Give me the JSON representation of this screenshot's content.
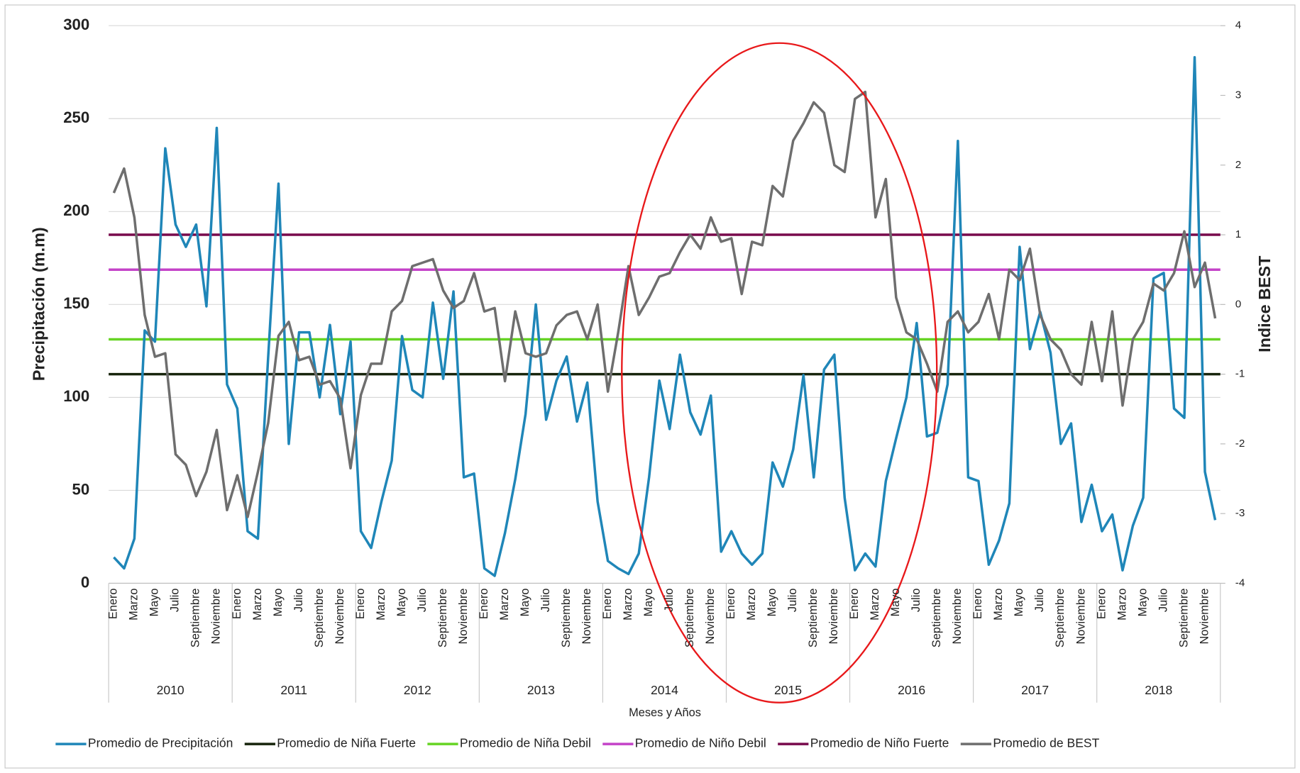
{
  "chart_data": {
    "type": "line",
    "y_title": "Precipitación (m.m)",
    "y2_title": "Indice BEST",
    "x_title": "Meses y Años",
    "categories": [
      "Enero",
      null,
      "Marzo",
      null,
      "Mayo",
      null,
      "Julio",
      null,
      "Septiembre",
      null,
      "Noviembre",
      null,
      "Enero",
      null,
      "Marzo",
      null,
      "Mayo",
      null,
      "Julio",
      null,
      "Septiembre",
      null,
      "Noviembre",
      null,
      "Enero",
      null,
      "Marzo",
      null,
      "Mayo",
      null,
      "Julio",
      null,
      "Septiembre",
      null,
      "Noviembre",
      null,
      "Enero",
      null,
      "Marzo",
      null,
      "Mayo",
      null,
      "Julio",
      null,
      "Septiembre",
      null,
      "Noviembre",
      null,
      "Enero",
      null,
      "Marzo",
      null,
      "Mayo",
      null,
      "Julio",
      null,
      "Septiembre",
      null,
      "Noviembre",
      null,
      "Enero",
      null,
      "Marzo",
      null,
      "Mayo",
      null,
      "Julio",
      null,
      "Septiembre",
      null,
      "Noviembre",
      null,
      "Enero",
      null,
      "Marzo",
      null,
      "Mayo",
      null,
      "Julio",
      null,
      "Septiembre",
      null,
      "Noviembre",
      null,
      "Enero",
      null,
      "Marzo",
      null,
      "Mayo",
      null,
      "Julio",
      null,
      "Septiembre",
      null,
      "Noviembre",
      null,
      "Enero",
      null,
      "Marzo",
      null,
      "Mayo",
      null,
      "Julio",
      null,
      "Septiembre",
      null,
      "Noviembre",
      null
    ],
    "groups": [
      "2010",
      "2011",
      "2012",
      "2013",
      "2014",
      "2015",
      "2016",
      "2017",
      "2018"
    ],
    "ylim": [
      0,
      300
    ],
    "yticks": [
      0,
      50,
      100,
      150,
      200,
      250,
      300
    ],
    "y2lim": [
      -4,
      4
    ],
    "y2ticks": [
      -4,
      -3,
      -2,
      -1,
      0,
      1,
      2,
      3,
      4
    ],
    "grid": true,
    "legend": "bottom",
    "series": [
      {
        "name": "Promedio de Precipitación",
        "color": "#1f86b8",
        "axis": "y",
        "values": [
          14,
          8,
          24,
          136,
          130,
          234,
          193,
          181,
          193,
          149,
          245,
          107,
          94,
          28,
          24,
          122,
          215,
          75,
          135,
          135,
          100,
          139,
          91,
          130,
          28,
          19,
          44,
          66,
          133,
          104,
          100,
          151,
          110,
          157,
          57,
          59,
          8,
          4,
          27,
          56,
          91,
          150,
          88,
          109,
          122,
          87,
          108,
          44,
          12,
          8,
          5,
          16,
          57,
          109,
          83,
          123,
          92,
          80,
          101,
          17,
          28,
          16,
          10,
          16,
          65,
          52,
          72,
          112,
          57,
          115,
          123,
          46,
          7,
          16,
          9,
          55,
          78,
          100,
          140,
          79,
          81,
          107,
          238,
          57,
          55,
          10,
          23,
          43,
          181,
          126,
          146,
          124,
          75,
          86,
          33,
          53,
          28,
          37,
          7,
          31,
          46,
          164,
          167,
          94,
          89,
          283,
          60,
          34
        ]
      },
      {
        "name": "Promedio de Niña Fuerte",
        "color": "#17240c",
        "axis": "y2",
        "value": -1
      },
      {
        "name": "Promedio de Niña Debil",
        "color": "#66d424",
        "axis": "y2",
        "value": -0.5
      },
      {
        "name": "Promedio de Niño Debil",
        "color": "#c443c8",
        "axis": "y2",
        "value": 0.5
      },
      {
        "name": "Promedio de Niño Fuerte",
        "color": "#780a4c",
        "axis": "y2",
        "value": 1
      },
      {
        "name": "Promedio de BEST",
        "color": "#6e6e6e",
        "axis": "y2",
        "values": [
          1.6,
          1.95,
          1.25,
          -0.15,
          -0.75,
          -0.7,
          -2.15,
          -2.3,
          -2.75,
          -2.4,
          -1.8,
          -2.95,
          -2.45,
          -3.05,
          -2.4,
          -1.7,
          -0.45,
          -0.25,
          -0.8,
          -0.75,
          -1.15,
          -1.1,
          -1.35,
          -2.35,
          -1.3,
          -0.85,
          -0.85,
          -0.1,
          0.05,
          0.55,
          0.6,
          0.65,
          0.2,
          -0.05,
          0.05,
          0.45,
          -0.1,
          -0.05,
          -1.1,
          -0.1,
          -0.7,
          -0.75,
          -0.7,
          -0.3,
          -0.15,
          -0.1,
          -0.5,
          0,
          -1.25,
          -0.4,
          0.55,
          -0.15,
          0.1,
          0.4,
          0.45,
          0.75,
          1.0,
          0.8,
          1.25,
          0.9,
          0.95,
          0.15,
          0.9,
          0.85,
          1.7,
          1.55,
          2.35,
          2.6,
          2.9,
          2.75,
          2.0,
          1.9,
          2.95,
          3.05,
          1.25,
          1.8,
          0.1,
          -0.4,
          -0.5,
          -0.85,
          -1.25,
          -0.25,
          -0.1,
          -0.4,
          -0.25,
          0.15,
          -0.5,
          0.5,
          0.35,
          0.8,
          -0.15,
          -0.5,
          -0.65,
          -1.0,
          -1.15,
          -0.25,
          -1.1,
          -0.1,
          -1.45,
          -0.5,
          -0.25,
          0.3,
          0.2,
          0.45,
          1.05,
          0.25,
          0.6,
          -0.2
        ]
      }
    ]
  }
}
